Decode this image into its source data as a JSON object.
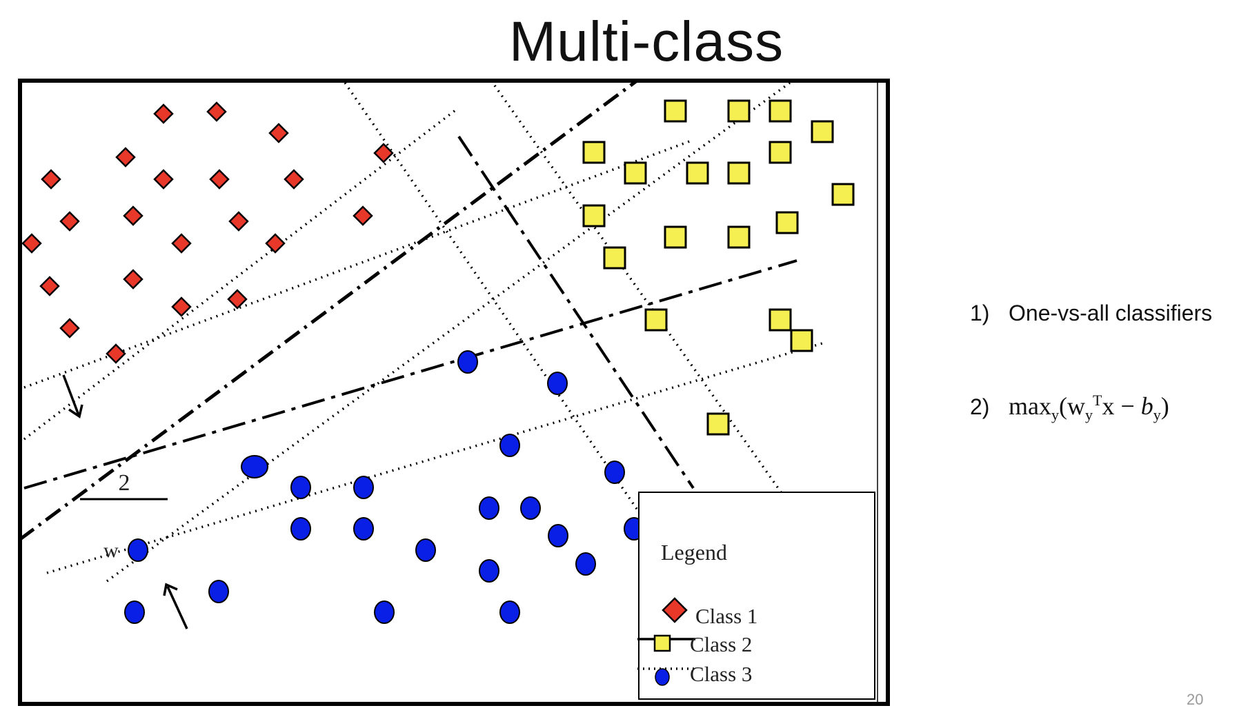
{
  "slide": {
    "title": "Multi-class",
    "page_number": "20"
  },
  "figure": {
    "w_label": "w",
    "margin_label": "2",
    "legend": {
      "title": "Legend",
      "items": [
        "Class 1",
        "Class 2",
        "Class 3"
      ]
    },
    "class_colors": {
      "class1": "#e8382a",
      "class2": "#f5ef52",
      "class3": "#0a1fe6"
    }
  },
  "bullets": [
    {
      "number": "1)",
      "text": "One-vs-all classifiers"
    },
    {
      "number": "2)",
      "formula": {
        "max": "max",
        "max_sub": "y",
        "open": "(",
        "w": "w",
        "w_sub": "y",
        "w_sup": "T",
        "x": "x",
        "minus": " − ",
        "b": "b",
        "b_sub": "y",
        "close": ")"
      }
    }
  ]
}
